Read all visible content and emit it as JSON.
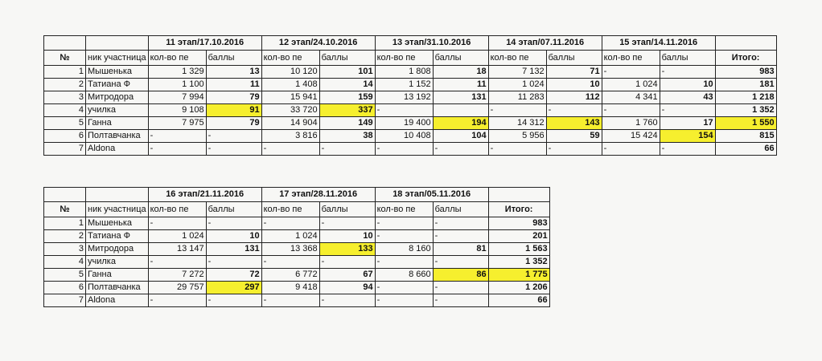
{
  "colors": {
    "highlight": "#f6ef2e",
    "border": "#222222",
    "paper": "#f7f7f5"
  },
  "tables": [
    {
      "stages": [
        "11 этап/17.10.2016",
        "12 этап/24.10.2016",
        "13 этап/31.10.2016",
        "14 этап/07.11.2016",
        "15 этап/14.11.2016"
      ],
      "header": {
        "num": "№",
        "name": "ник участница",
        "count": "кол-во пе",
        "points": "баллы",
        "total": "Итого:"
      },
      "rows": [
        {
          "n": "1",
          "name": "Мышенька",
          "cells": [
            [
              "1 329",
              "13"
            ],
            [
              "10 120",
              "101"
            ],
            [
              "1 808",
              "18"
            ],
            [
              "7 132",
              "71"
            ],
            [
              "-",
              "-"
            ]
          ],
          "total": "983",
          "hl": [],
          "total_hl": false
        },
        {
          "n": "2",
          "name": "Татиана Ф",
          "cells": [
            [
              "1 100",
              "11"
            ],
            [
              "1 408",
              "14"
            ],
            [
              "1 152",
              "11"
            ],
            [
              "1 024",
              "10"
            ],
            [
              "1 024",
              "10"
            ]
          ],
          "total": "181",
          "hl": [],
          "total_hl": false
        },
        {
          "n": "3",
          "name": "Митродора",
          "cells": [
            [
              "7 994",
              "79"
            ],
            [
              "15 941",
              "159"
            ],
            [
              "13 192",
              "131"
            ],
            [
              "11 283",
              "112"
            ],
            [
              "4 341",
              "43"
            ]
          ],
          "total": "1 218",
          "hl": [],
          "total_hl": false
        },
        {
          "n": "4",
          "name": "училка",
          "cells": [
            [
              "9 108",
              "91"
            ],
            [
              "33 720",
              "337"
            ],
            [
              "-",
              ""
            ],
            [
              "-",
              "-"
            ],
            [
              "-",
              "-"
            ]
          ],
          "total": "1 352",
          "hl": [
            0,
            1
          ],
          "total_hl": false
        },
        {
          "n": "5",
          "name": "Ганна",
          "cells": [
            [
              "7 975",
              "79"
            ],
            [
              "14 904",
              "149"
            ],
            [
              "19 400",
              "194"
            ],
            [
              "14 312",
              "143"
            ],
            [
              "1 760",
              "17"
            ]
          ],
          "total": "1 550",
          "hl": [
            2,
            3
          ],
          "total_hl": true
        },
        {
          "n": "6",
          "name": "Полтавчанка",
          "cells": [
            [
              "-",
              "-"
            ],
            [
              "3 816",
              "38"
            ],
            [
              "10 408",
              "104"
            ],
            [
              "5 956",
              "59"
            ],
            [
              "15 424",
              "154"
            ]
          ],
          "total": "815",
          "hl": [
            4
          ],
          "total_hl": false
        },
        {
          "n": "7",
          "name": "Aldona",
          "cells": [
            [
              "-",
              "-"
            ],
            [
              "-",
              "-"
            ],
            [
              "-",
              "-"
            ],
            [
              "-",
              "-"
            ],
            [
              "-",
              "-"
            ]
          ],
          "total": "66",
          "hl": [],
          "total_hl": false
        }
      ]
    },
    {
      "stages": [
        "16 этап/21.11.2016",
        "17 этап/28.11.2016",
        "18 этап/05.11.2016"
      ],
      "header": {
        "num": "№",
        "name": "ник участница",
        "count": "кол-во пе",
        "points": "баллы",
        "total": "Итого:"
      },
      "rows": [
        {
          "n": "1",
          "name": "Мышенька",
          "cells": [
            [
              "-",
              "-"
            ],
            [
              "-",
              "-"
            ],
            [
              "-",
              "-"
            ]
          ],
          "total": "983",
          "hl": [],
          "total_hl": false
        },
        {
          "n": "2",
          "name": "Татиана Ф",
          "cells": [
            [
              "1 024",
              "10"
            ],
            [
              "1 024",
              "10"
            ],
            [
              "-",
              "-"
            ]
          ],
          "total": "201",
          "hl": [],
          "total_hl": false
        },
        {
          "n": "3",
          "name": "Митродора",
          "cells": [
            [
              "13 147",
              "131"
            ],
            [
              "13 368",
              "133"
            ],
            [
              "8 160",
              "81"
            ]
          ],
          "total": "1 563",
          "hl": [
            1
          ],
          "total_hl": false
        },
        {
          "n": "4",
          "name": "училка",
          "cells": [
            [
              "-",
              "-"
            ],
            [
              "-",
              "-"
            ],
            [
              "-",
              "-"
            ]
          ],
          "total": "1 352",
          "hl": [],
          "total_hl": false
        },
        {
          "n": "5",
          "name": "Ганна",
          "cells": [
            [
              "7 272",
              "72"
            ],
            [
              "6 772",
              "67"
            ],
            [
              "8 660",
              "86"
            ]
          ],
          "total": "1 775",
          "hl": [
            2
          ],
          "total_hl": true
        },
        {
          "n": "6",
          "name": "Полтавчанка",
          "cells": [
            [
              "29 757",
              "297"
            ],
            [
              "9 418",
              "94"
            ],
            [
              "-",
              "-"
            ]
          ],
          "total": "1 206",
          "hl": [
            0
          ],
          "total_hl": false
        },
        {
          "n": "7",
          "name": "Aldona",
          "cells": [
            [
              "-",
              "-"
            ],
            [
              "-",
              "-"
            ],
            [
              "-",
              "-"
            ]
          ],
          "total": "66",
          "hl": [],
          "total_hl": false
        }
      ]
    }
  ]
}
